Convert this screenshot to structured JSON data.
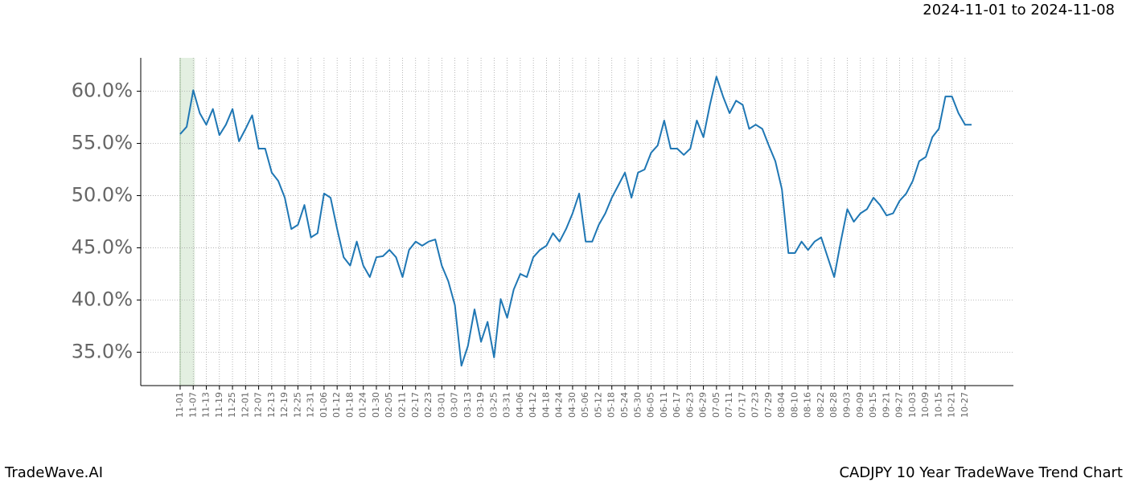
{
  "chart_data": {
    "type": "line",
    "date_range": "2024-11-01 to 2024-11-08",
    "brand": "TradeWave.AI",
    "title": "CADJPY 10 Year TradeWave Trend Chart",
    "categories": [
      "11-01",
      null,
      "11-07",
      null,
      "11-13",
      null,
      "11-19",
      null,
      "11-25",
      null,
      "12-01",
      null,
      "12-07",
      null,
      "12-13",
      null,
      "12-19",
      null,
      "12-25",
      null,
      "12-31",
      null,
      "01-06",
      null,
      "01-12",
      null,
      "01-18",
      null,
      "01-24",
      null,
      "01-30",
      null,
      "02-05",
      null,
      "02-11",
      null,
      "02-17",
      null,
      "02-23",
      null,
      "03-01",
      null,
      "03-07",
      null,
      "03-13",
      null,
      "03-19",
      null,
      "03-25",
      null,
      "03-31",
      null,
      "04-06",
      null,
      "04-12",
      null,
      "04-18",
      null,
      "04-24",
      null,
      "04-30",
      null,
      "05-06",
      null,
      "05-12",
      null,
      "05-18",
      null,
      "05-24",
      null,
      "05-30",
      null,
      "06-05",
      null,
      "06-11",
      null,
      "06-17",
      null,
      "06-23",
      null,
      "06-29",
      null,
      "07-05",
      null,
      "07-11",
      null,
      "07-17",
      null,
      "07-23",
      null,
      "07-29",
      null,
      "08-04",
      null,
      "08-10",
      null,
      "08-16",
      null,
      "08-22",
      null,
      "08-28",
      null,
      "09-03",
      null,
      "09-09",
      null,
      "09-15",
      null,
      "09-21",
      null,
      "09-27",
      null,
      "10-03",
      null,
      "10-09",
      null,
      "10-15",
      null,
      "10-21",
      null,
      "10-27",
      null
    ],
    "series": [
      {
        "color": "#1f77b4",
        "values": [
          55.9,
          56.6,
          60.1,
          57.9,
          56.8,
          58.3,
          55.8,
          56.8,
          58.3,
          55.2,
          56.4,
          57.7,
          54.5,
          54.5,
          52.2,
          51.4,
          49.8,
          46.8,
          47.2,
          49.1,
          46.0,
          46.4,
          50.2,
          49.8,
          46.8,
          44.1,
          43.3,
          45.6,
          43.3,
          42.2,
          44.1,
          44.2,
          44.8,
          44.1,
          42.2,
          44.8,
          45.6,
          45.2,
          45.6,
          45.8,
          43.3,
          41.8,
          39.5,
          33.7,
          35.6,
          39.1,
          36.0,
          37.9,
          34.5,
          40.1,
          38.3,
          41.0,
          42.5,
          42.2,
          44.1,
          44.8,
          45.2,
          46.4,
          45.6,
          46.8,
          48.3,
          50.2,
          45.6,
          45.6,
          47.2,
          48.3,
          49.8,
          51.0,
          52.2,
          49.8,
          52.2,
          52.5,
          54.1,
          54.8,
          57.2,
          54.5,
          54.5,
          53.9,
          54.5,
          57.2,
          55.6,
          58.7,
          61.4,
          59.5,
          57.9,
          59.1,
          58.7,
          56.4,
          56.8,
          56.4,
          54.8,
          53.3,
          50.6,
          44.5,
          44.5,
          45.6,
          44.8,
          45.6,
          46.0,
          44.1,
          42.2,
          45.6,
          48.7,
          47.5,
          48.3,
          48.7,
          49.8,
          49.1,
          48.1,
          48.3,
          49.5,
          50.2,
          51.4,
          53.3,
          53.7,
          55.6,
          56.4,
          59.5,
          59.5,
          57.9,
          56.8,
          56.8
        ]
      }
    ],
    "ylim": [
      31.8,
      63.2
    ],
    "yticks": [
      {
        "value": 35,
        "label": "35.0%"
      },
      {
        "value": 40,
        "label": "40.0%"
      },
      {
        "value": 45,
        "label": "45.0%"
      },
      {
        "value": 50,
        "label": "50.0%"
      },
      {
        "value": 55,
        "label": "55.0%"
      },
      {
        "value": 60,
        "label": "60.0%"
      }
    ],
    "grid": true,
    "highlight": {
      "from": "11-01",
      "to": "11-07",
      "color": "#e3efe1"
    }
  }
}
